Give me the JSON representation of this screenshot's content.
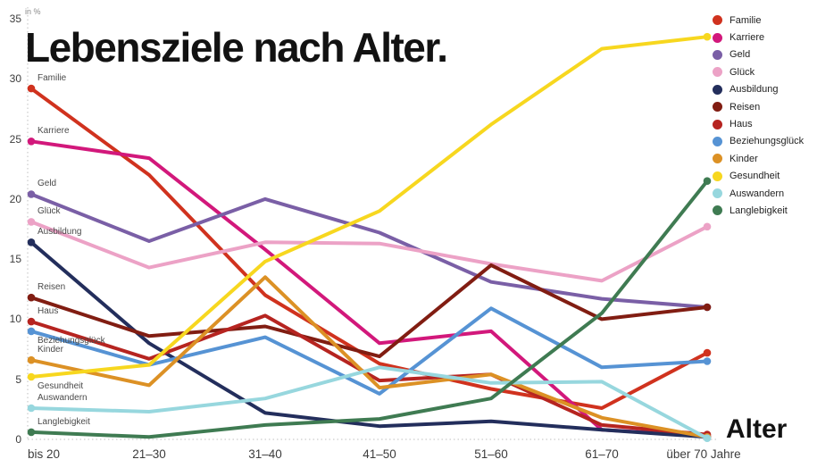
{
  "chart_data": {
    "type": "line",
    "title": "Lebensziele nach Alter.",
    "unit_label": "in %",
    "x_axis_label": "Alter",
    "categories": [
      "bis 20",
      "21–30",
      "31–40",
      "41–50",
      "51–60",
      "61–70",
      "über 70 Jahre"
    ],
    "y_ticks": [
      0,
      5,
      10,
      15,
      20,
      25,
      30,
      35
    ],
    "ylim": [
      0,
      35
    ],
    "grid": "dotted baseline and left axis only",
    "legend_position": "top-right",
    "series": [
      {
        "name": "Familie",
        "color": "#d0321e",
        "values": [
          29.2,
          22.0,
          12.0,
          6.3,
          4.2,
          2.6,
          7.2
        ]
      },
      {
        "name": "Karriere",
        "color": "#d2187b",
        "values": [
          24.8,
          23.4,
          15.8,
          8.0,
          9.0,
          0.8,
          0.3
        ]
      },
      {
        "name": "Geld",
        "color": "#7a5fa6",
        "values": [
          20.4,
          16.5,
          20.0,
          17.2,
          13.1,
          11.7,
          11.0
        ]
      },
      {
        "name": "Glück",
        "color": "#eca2c6",
        "values": [
          18.1,
          14.3,
          16.4,
          16.3,
          14.6,
          13.2,
          17.7
        ]
      },
      {
        "name": "Ausbildung",
        "color": "#232e5c",
        "values": [
          16.4,
          8.0,
          2.2,
          1.1,
          1.5,
          0.8,
          0.2
        ]
      },
      {
        "name": "Reisen",
        "color": "#811d12",
        "values": [
          11.8,
          8.6,
          9.4,
          6.9,
          14.5,
          10.0,
          11.0
        ]
      },
      {
        "name": "Haus",
        "color": "#b62420",
        "values": [
          9.8,
          6.7,
          10.3,
          4.9,
          5.4,
          1.2,
          0.4
        ]
      },
      {
        "name": "Beziehungsglück",
        "color": "#5693d4",
        "values": [
          9.0,
          6.2,
          8.5,
          3.8,
          10.9,
          6.0,
          6.5
        ]
      },
      {
        "name": "Kinder",
        "color": "#dc9125",
        "values": [
          6.6,
          4.5,
          13.5,
          4.3,
          5.4,
          1.8,
          0.2
        ]
      },
      {
        "name": "Gesundheit",
        "color": "#f7d71f",
        "values": [
          5.2,
          6.2,
          14.8,
          19.0,
          26.2,
          32.5,
          33.5
        ]
      },
      {
        "name": "Auswandern",
        "color": "#97d7de",
        "values": [
          2.6,
          2.3,
          3.4,
          6.0,
          4.7,
          4.8,
          0.1
        ]
      },
      {
        "name": "Langlebigkeit",
        "color": "#3f7b52",
        "values": [
          0.6,
          0.2,
          1.2,
          1.7,
          3.4,
          10.5,
          21.5
        ]
      }
    ]
  }
}
